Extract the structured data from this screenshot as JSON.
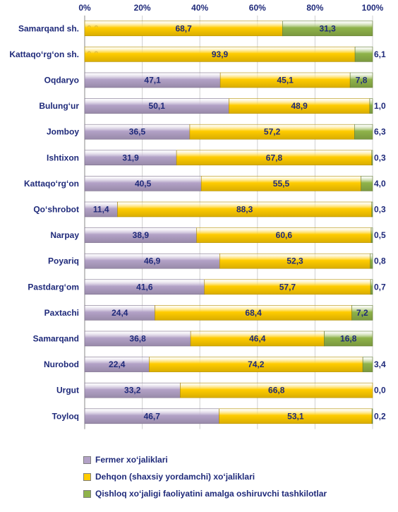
{
  "chart_data": {
    "type": "bar",
    "orientation": "horizontal",
    "stacked": true,
    "percent": true,
    "categories": [
      "Samarqand sh.",
      "Kattaqo‘rg‘on sh.",
      "Oqdaryo",
      "Bulung‘ur",
      "Jomboy",
      "Ishtixon",
      "Kattaqo‘rg‘on",
      "Qo‘shrobot",
      "Narpay",
      "Poyariq",
      "Pastdarg‘om",
      "Paxtachi",
      "Samarqand",
      "Nurobod",
      "Urgut",
      "Toyloq"
    ],
    "series": [
      {
        "name": "Fermer xo‘jaliklari",
        "color": "#b3a2c7",
        "values": [
          0.0,
          0.0,
          47.1,
          50.1,
          36.5,
          31.9,
          40.5,
          11.4,
          38.9,
          46.9,
          41.6,
          24.4,
          36.8,
          22.4,
          33.2,
          46.7
        ],
        "labels": [
          "0,0",
          "0,0",
          "47,1",
          "50,1",
          "36,5",
          "31,9",
          "40,5",
          "11,4",
          "38,9",
          "46,9",
          "41,6",
          "24,4",
          "36,8",
          "22,4",
          "33,2",
          "46,7"
        ]
      },
      {
        "name": "Dehqon (shaxsiy yordamchi) xo‘jaliklari",
        "color": "#ffcc00",
        "values": [
          68.7,
          93.9,
          45.1,
          48.9,
          57.2,
          67.8,
          55.5,
          88.3,
          60.6,
          52.3,
          57.7,
          68.4,
          46.4,
          74.2,
          66.8,
          53.1
        ],
        "labels": [
          "68,7",
          "93,9",
          "45,1",
          "48,9",
          "57,2",
          "67,8",
          "55,5",
          "88,3",
          "60,6",
          "52,3",
          "57,7",
          "68,4",
          "46,4",
          "74,2",
          "66,8",
          "53,1"
        ]
      },
      {
        "name": "Qishloq xo‘jaligi faoliyatini amalga oshiruvchi tashkilotlar",
        "color": "#8fb34a",
        "values": [
          31.3,
          6.1,
          7.8,
          1.0,
          6.3,
          0.3,
          4.0,
          0.3,
          0.5,
          0.8,
          0.7,
          7.2,
          16.8,
          3.4,
          0.0,
          0.2
        ],
        "labels": [
          "31,3",
          "6,1",
          "7,8",
          "1,0",
          "6,3",
          "0,3",
          "4,0",
          "0,3",
          "0,5",
          "0,8",
          "0,7",
          "7,2",
          "16,8",
          "3,4",
          "0,0",
          "0,2"
        ]
      }
    ],
    "xlim": [
      0,
      100
    ],
    "x_ticks": [
      "0%",
      "20%",
      "40%",
      "60%",
      "80%",
      "100%"
    ],
    "grid": true,
    "legend_position": "bottom-left"
  }
}
